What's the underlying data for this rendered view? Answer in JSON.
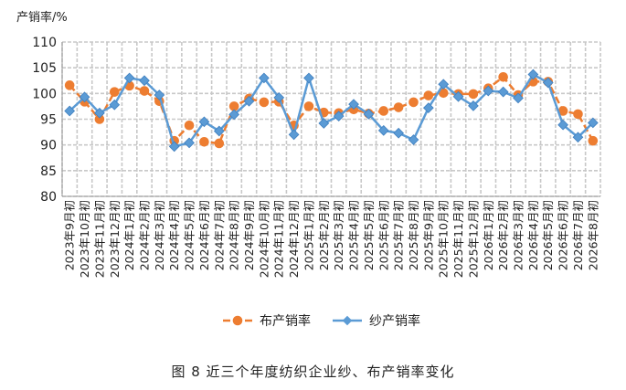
{
  "figure": {
    "unit_label": "产销率/%",
    "caption": "图 8   近三个年度纺织企业纱、布产销率变化"
  },
  "chart_data": {
    "type": "line",
    "ylim": [
      80,
      110
    ],
    "yticks": [
      80,
      85,
      90,
      95,
      100,
      105,
      110
    ],
    "grid": true,
    "legend_position": "bottom",
    "categories": [
      "2023年9月初",
      "2023年10月初",
      "2023年11月初",
      "2023年12月初",
      "2024年1月初",
      "2024年2月初",
      "2024年3月初",
      "2024年4月初",
      "2024年5月初",
      "2024年6月初",
      "2024年7月初",
      "2024年8月初",
      "2024年9月初",
      "2024年10月初",
      "2024年11月初",
      "2024年12月初",
      "2025年1月初",
      "2025年2月初",
      "2025年3月初",
      "2025年4月初",
      "2025年5月初",
      "2025年6月初",
      "2025年7月初",
      "2025年8月初",
      "2025年9月初",
      "2025年10月初",
      "2025年11月初",
      "2025年12月初",
      "2026年1月初",
      "2026年2月初",
      "2026年3月初",
      "2026年4月初",
      "2026年5月初",
      "2026年6月初",
      "2026年7月初",
      "2026年8月初"
    ],
    "series": [
      {
        "name": "布产销率",
        "color": "#ED7D31",
        "marker": "circle",
        "line_style": "dashed",
        "values": [
          101.6,
          98.4,
          95.0,
          100.3,
          101.5,
          100.5,
          98.5,
          90.8,
          93.8,
          90.6,
          90.3,
          97.5,
          99.0,
          98.3,
          98.4,
          93.8,
          97.5,
          96.3,
          96.2,
          96.9,
          96.1,
          96.6,
          97.3,
          98.3,
          99.6,
          100.1,
          99.9,
          99.9,
          101.0,
          103.2,
          99.7,
          102.3,
          102.3,
          96.6,
          96.0,
          90.8
        ]
      },
      {
        "name": "纱产销率",
        "color": "#5B9BD5",
        "marker": "diamond",
        "line_style": "solid",
        "values": [
          96.6,
          99.3,
          96.2,
          97.8,
          103.0,
          102.5,
          99.7,
          89.7,
          90.4,
          94.5,
          92.7,
          95.9,
          98.5,
          103.0,
          99.2,
          92.0,
          103.0,
          94.2,
          95.6,
          97.9,
          96.0,
          92.8,
          92.3,
          91.0,
          97.2,
          101.8,
          99.4,
          97.6,
          100.5,
          100.3,
          99.1,
          103.7,
          102.1,
          93.9,
          91.5,
          94.3
        ]
      }
    ]
  }
}
